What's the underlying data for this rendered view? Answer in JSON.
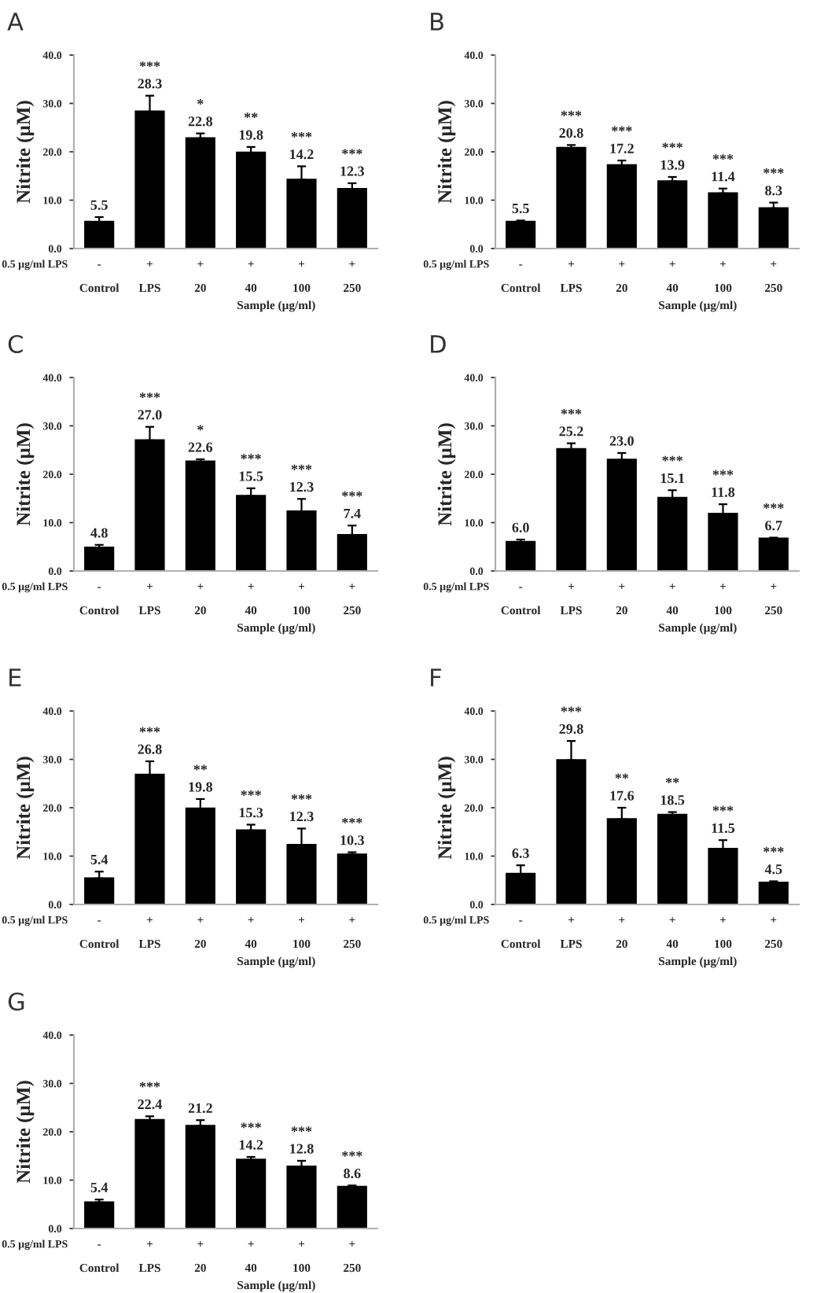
{
  "chart_data": [
    {
      "type": "bar",
      "title": "A",
      "categories": [
        "Control",
        "LPS",
        "20",
        "40",
        "100",
        "250"
      ],
      "values": [
        5.5,
        28.3,
        22.8,
        19.8,
        14.2,
        12.3
      ],
      "value_labels": [
        "5.5",
        "28.3",
        "22.8",
        "19.8",
        "14.2",
        "12.3"
      ],
      "errors": [
        1.0,
        3.3,
        1.0,
        1.2,
        2.8,
        1.2
      ],
      "color": "#000000",
      "ylabel": "Nitrite (µM)",
      "xlabel": "Sample (µg/ml)",
      "ylim": [
        0,
        40
      ],
      "yticks": [
        {
          "value": 0,
          "label": "0.0"
        },
        {
          "value": 10,
          "label": "10.0"
        },
        {
          "value": 20,
          "label": "20.0"
        },
        {
          "value": 30,
          "label": "30.0"
        },
        {
          "value": 40,
          "label": "40.0"
        }
      ],
      "grid": false,
      "annotations": [
        "0.5 µg/ml LPS",
        "-",
        "+",
        "+",
        "+",
        "+",
        "+",
        {
          "text": "***",
          "x": "LPS",
          "y": 31.6
        },
        {
          "text": "*",
          "x": "20",
          "y": 23.8
        },
        {
          "text": "**",
          "x": "40",
          "y": 21.0
        },
        {
          "text": "***",
          "x": "100",
          "y": 17.0
        },
        {
          "text": "***",
          "x": "250",
          "y": 13.5
        }
      ]
    },
    {
      "type": "bar",
      "title": "B",
      "categories": [
        "Control",
        "LPS",
        "20",
        "40",
        "100",
        "250"
      ],
      "values": [
        5.5,
        20.8,
        17.2,
        13.9,
        11.4,
        8.3
      ],
      "value_labels": [
        "5.5",
        "20.8",
        "17.2",
        "13.9",
        "11.4",
        "8.3"
      ],
      "errors": [
        0.3,
        0.6,
        1.0,
        0.9,
        1.0,
        1.2
      ],
      "color": "#000000",
      "ylabel": "Nitrite (µM)",
      "xlabel": "Sample (µg/ml)",
      "ylim": [
        0,
        40
      ],
      "yticks": [
        {
          "value": 0,
          "label": "0.0"
        },
        {
          "value": 10,
          "label": "10.0"
        },
        {
          "value": 20,
          "label": "20.0"
        },
        {
          "value": 30,
          "label": "30.0"
        },
        {
          "value": 40,
          "label": "40.0"
        }
      ],
      "grid": false,
      "annotations": [
        "0.5 µg/ml LPS",
        "-",
        "+",
        "+",
        "+",
        "+",
        "+",
        {
          "text": "***",
          "x": "LPS",
          "y": 21.4
        },
        {
          "text": "***",
          "x": "20",
          "y": 18.2
        },
        {
          "text": "***",
          "x": "40",
          "y": 14.8
        },
        {
          "text": "***",
          "x": "100",
          "y": 12.4
        },
        {
          "text": "***",
          "x": "250",
          "y": 9.5
        }
      ]
    },
    {
      "type": "bar",
      "title": "C",
      "categories": [
        "Control",
        "LPS",
        "20",
        "40",
        "100",
        "250"
      ],
      "values": [
        4.8,
        27.0,
        22.6,
        15.5,
        12.3,
        7.4
      ],
      "value_labels": [
        "4.8",
        "27.0",
        "22.6",
        "15.5",
        "12.3",
        "7.4"
      ],
      "errors": [
        0.6,
        2.8,
        0.5,
        1.6,
        2.6,
        2.0
      ],
      "color": "#000000",
      "ylabel": "Nitrite (µM)",
      "xlabel": "Sample (µg/ml)",
      "ylim": [
        0,
        40
      ],
      "yticks": [
        {
          "value": 0,
          "label": "0.0"
        },
        {
          "value": 10,
          "label": "10.0"
        },
        {
          "value": 20,
          "label": "20.0"
        },
        {
          "value": 30,
          "label": "30.0"
        },
        {
          "value": 40,
          "label": "40.0"
        }
      ],
      "grid": false,
      "annotations": [
        "0.5 µg/ml LPS",
        "-",
        "+",
        "+",
        "+",
        "+",
        "+",
        {
          "text": "***",
          "x": "LPS",
          "y": 29.8
        },
        {
          "text": "*",
          "x": "20",
          "y": 23.1
        },
        {
          "text": "***",
          "x": "40",
          "y": 17.1
        },
        {
          "text": "***",
          "x": "100",
          "y": 14.9
        },
        {
          "text": "***",
          "x": "250",
          "y": 9.4
        }
      ]
    },
    {
      "type": "bar",
      "title": "D",
      "categories": [
        "Control",
        "LPS",
        "20",
        "40",
        "100",
        "250"
      ],
      "values": [
        6.0,
        25.2,
        23.0,
        15.1,
        11.8,
        6.7
      ],
      "value_labels": [
        "6.0",
        "25.2",
        "23.0",
        "15.1",
        "11.8",
        "6.7"
      ],
      "errors": [
        0.5,
        1.2,
        1.4,
        1.6,
        2.0,
        0.2
      ],
      "color": "#000000",
      "ylabel": "Nitrite (µM)",
      "xlabel": "Sample (µg/ml)",
      "ylim": [
        0,
        40
      ],
      "yticks": [
        {
          "value": 0,
          "label": "0.0"
        },
        {
          "value": 10,
          "label": "10.0"
        },
        {
          "value": 20,
          "label": "20.0"
        },
        {
          "value": 30,
          "label": "30.0"
        },
        {
          "value": 40,
          "label": "40.0"
        }
      ],
      "grid": false,
      "annotations": [
        "0.5 µg/ml LPS",
        "-",
        "+",
        "+",
        "+",
        "+",
        "+",
        {
          "text": "***",
          "x": "LPS",
          "y": 26.4
        },
        {
          "text": "***",
          "x": "40",
          "y": 16.7
        },
        {
          "text": "***",
          "x": "100",
          "y": 13.8
        },
        {
          "text": "***",
          "x": "250",
          "y": 6.9
        }
      ]
    },
    {
      "type": "bar",
      "title": "E",
      "categories": [
        "Control",
        "LPS",
        "20",
        "40",
        "100",
        "250"
      ],
      "values": [
        5.4,
        26.8,
        19.8,
        15.3,
        12.3,
        10.3
      ],
      "value_labels": [
        "5.4",
        "26.8",
        "19.8",
        "15.3",
        "12.3",
        "10.3"
      ],
      "errors": [
        1.4,
        2.8,
        2.0,
        1.2,
        3.4,
        0.5
      ],
      "color": "#000000",
      "ylabel": "Nitrite (µM)",
      "xlabel": "Sample (µg/ml)",
      "ylim": [
        0,
        40
      ],
      "yticks": [
        {
          "value": 0,
          "label": "0.0"
        },
        {
          "value": 10,
          "label": "10.0"
        },
        {
          "value": 20,
          "label": "20.0"
        },
        {
          "value": 30,
          "label": "30.0"
        },
        {
          "value": 40,
          "label": "40.0"
        }
      ],
      "grid": false,
      "annotations": [
        "0.5 µg/ml LPS",
        "-",
        "+",
        "+",
        "+",
        "+",
        "+",
        {
          "text": "***",
          "x": "LPS",
          "y": 29.6
        },
        {
          "text": "**",
          "x": "20",
          "y": 21.8
        },
        {
          "text": "***",
          "x": "40",
          "y": 16.5
        },
        {
          "text": "***",
          "x": "100",
          "y": 15.7
        },
        {
          "text": "***",
          "x": "250",
          "y": 10.8
        }
      ]
    },
    {
      "type": "bar",
      "title": "F",
      "categories": [
        "Control",
        "LPS",
        "20",
        "40",
        "100",
        "250"
      ],
      "values": [
        6.3,
        29.8,
        17.6,
        18.5,
        11.5,
        4.5
      ],
      "value_labels": [
        "6.3",
        "29.8",
        "17.6",
        "18.5",
        "11.5",
        "4.5"
      ],
      "errors": [
        1.8,
        4.0,
        2.4,
        0.6,
        1.8,
        0.3
      ],
      "color": "#000000",
      "ylabel": "Nitrite (µM)",
      "xlabel": "Sample (µg/ml)",
      "ylim": [
        0,
        40
      ],
      "yticks": [
        {
          "value": 0,
          "label": "0.0"
        },
        {
          "value": 10,
          "label": "10.0"
        },
        {
          "value": 20,
          "label": "20.0"
        },
        {
          "value": 30,
          "label": "30.0"
        },
        {
          "value": 40,
          "label": "40.0"
        }
      ],
      "grid": false,
      "annotations": [
        "0.5 µg/ml LPS",
        "-",
        "+",
        "+",
        "+",
        "+",
        "+",
        {
          "text": "***",
          "x": "LPS",
          "y": 33.8
        },
        {
          "text": "**",
          "x": "20",
          "y": 20.0
        },
        {
          "text": "**",
          "x": "40",
          "y": 19.1
        },
        {
          "text": "***",
          "x": "100",
          "y": 13.3
        },
        {
          "text": "***",
          "x": "250",
          "y": 4.8
        }
      ]
    },
    {
      "type": "bar",
      "title": "G",
      "categories": [
        "Control",
        "LPS",
        "20",
        "40",
        "100",
        "250"
      ],
      "values": [
        5.4,
        22.4,
        21.2,
        14.2,
        12.8,
        8.6
      ],
      "value_labels": [
        "5.4",
        "22.4",
        "21.2",
        "14.2",
        "12.8",
        "8.6"
      ],
      "errors": [
        0.6,
        0.8,
        1.2,
        0.6,
        1.2,
        0.3
      ],
      "color": "#000000",
      "ylabel": "Nitrite (µM)",
      "xlabel": "Sample (µg/ml)",
      "ylim": [
        0,
        40
      ],
      "yticks": [
        {
          "value": 0,
          "label": "0.0"
        },
        {
          "value": 10,
          "label": "10.0"
        },
        {
          "value": 20,
          "label": "20.0"
        },
        {
          "value": 30,
          "label": "30.0"
        },
        {
          "value": 40,
          "label": "40.0"
        }
      ],
      "grid": false,
      "annotations": [
        "0.5 µg/ml LPS",
        "-",
        "+",
        "+",
        "+",
        "+",
        "+",
        {
          "text": "***",
          "x": "LPS",
          "y": 23.2
        },
        {
          "text": "***",
          "x": "40",
          "y": 14.8
        },
        {
          "text": "***",
          "x": "100",
          "y": 14.0
        },
        {
          "text": "***",
          "x": "250",
          "y": 8.9
        }
      ]
    }
  ]
}
